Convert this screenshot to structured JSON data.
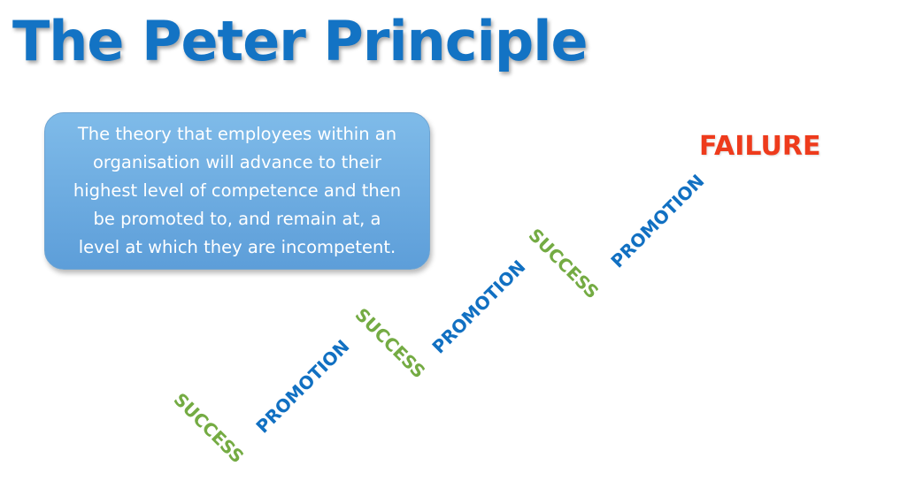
{
  "title": "The Peter Principle",
  "definition": "The theory that employees within an\norganisation will advance to their\nhighest level of competence and then\nbe promoted to, and remain at, a\nlevel at which they are  incompetent.",
  "ladder": {
    "success_label": "SUCCESS",
    "promotion_label": "PROMOTION",
    "failure_label": "FAILURE",
    "steps": [
      {
        "success": "SUCCESS",
        "promotion": "PROMOTION"
      },
      {
        "success": "SUCCESS",
        "promotion": "PROMOTION"
      },
      {
        "success": "SUCCESS",
        "promotion": "PROMOTION"
      }
    ]
  },
  "colors": {
    "title": "#1373c4",
    "success": "#74ab43",
    "promotion": "#1170c2",
    "failure": "#ee3b1c",
    "box": "#6eaee4"
  }
}
